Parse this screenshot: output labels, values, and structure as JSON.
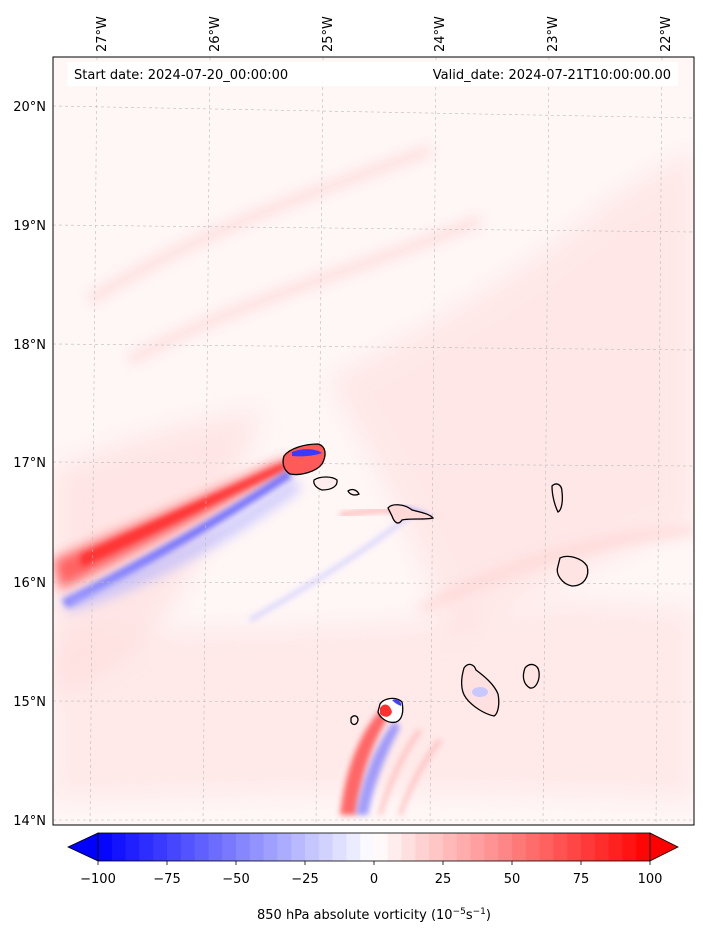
{
  "map": {
    "title_left_label": "Start date:",
    "start_date": "2024-07-20_00:00:00",
    "title_right_label": "Valid_date:",
    "valid_date": "2024-07-21T10:00:00.00",
    "lon_labels": [
      "27°W",
      "26°W",
      "25°W",
      "24°W",
      "23°W",
      "22°W"
    ],
    "lat_labels": [
      "20°N",
      "19°N",
      "18°N",
      "17°N",
      "16°N",
      "15°N",
      "14°N"
    ],
    "background_color": "#fff6f6",
    "grid": "on",
    "gridline_style": "dashed"
  },
  "colorbar": {
    "label_main": "850 hPa absolute vorticity (10",
    "label_exp1": "−5",
    "label_mid": "s",
    "label_exp2": "−1",
    "label_end": ")",
    "ticks": [
      "−100",
      "−75",
      "−50",
      "−25",
      "0",
      "25",
      "50",
      "75",
      "100"
    ],
    "tick_values": [
      -100,
      -75,
      -50,
      -25,
      0,
      25,
      50,
      75,
      100
    ],
    "vmin": -100,
    "vmax": 100,
    "levels": 40,
    "extend": "both",
    "cmap_low": "#0000ff",
    "cmap_mid": "#ffffff",
    "cmap_high": "#ff0000"
  }
}
